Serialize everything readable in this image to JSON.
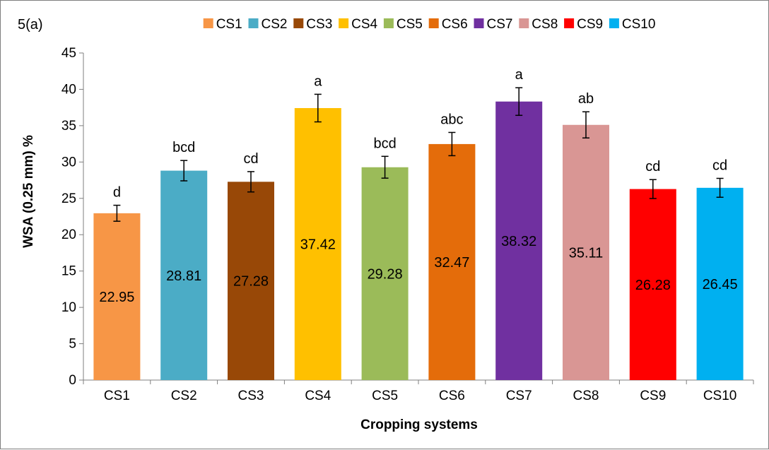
{
  "panel_label": "5(a)",
  "chart_data": {
    "type": "bar",
    "categories": [
      "CS1",
      "CS2",
      "CS3",
      "CS4",
      "CS5",
      "CS6",
      "CS7",
      "CS8",
      "CS9",
      "CS10"
    ],
    "values": [
      22.95,
      28.81,
      27.28,
      37.42,
      29.28,
      32.47,
      38.32,
      35.11,
      26.28,
      26.45
    ],
    "value_labels": [
      "22.95",
      "28.81",
      "27.28",
      "37.42",
      "29.28",
      "32.47",
      "38.32",
      "35.11",
      "26.28",
      "26.45"
    ],
    "error": [
      1.1,
      1.4,
      1.4,
      1.9,
      1.5,
      1.6,
      1.9,
      1.8,
      1.3,
      1.3
    ],
    "significance_letters": [
      "d",
      "bcd",
      "cd",
      "a",
      "bcd",
      "abc",
      "a",
      "ab",
      "cd",
      "cd"
    ],
    "colors": [
      "#F79646",
      "#4BACC6",
      "#984807",
      "#FFC000",
      "#9BBB59",
      "#E46C0A",
      "#7030A0",
      "#D99694",
      "#FF0000",
      "#00B0F0"
    ],
    "xlabel": "Cropping systems",
    "ylabel": "WSA (0.25 mm) %",
    "ylim": [
      0,
      45
    ],
    "yticks": [
      0,
      5,
      10,
      15,
      20,
      25,
      30,
      35,
      40,
      45
    ],
    "grid": false,
    "legend": {
      "position": "top",
      "entries": [
        "CS1",
        "CS2",
        "CS3",
        "CS4",
        "CS5",
        "CS6",
        "CS7",
        "CS8",
        "CS9",
        "CS10"
      ]
    }
  }
}
